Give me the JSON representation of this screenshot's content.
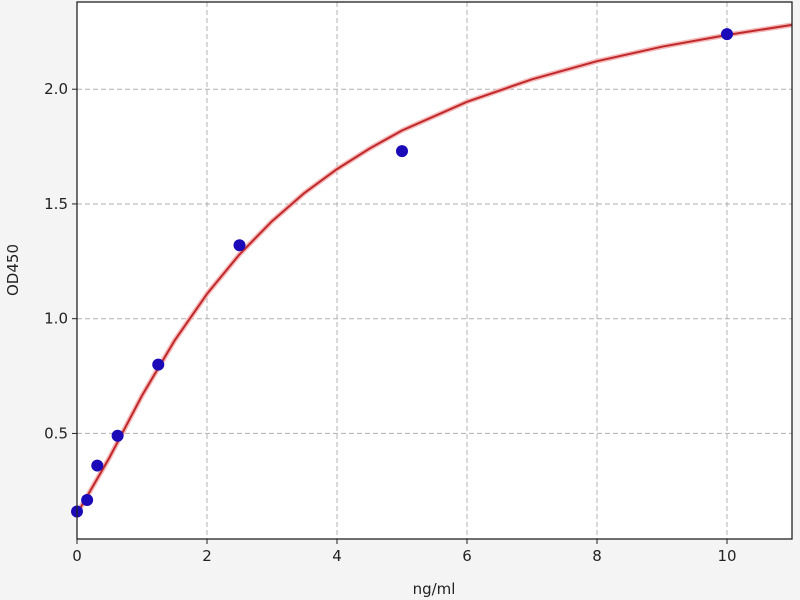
{
  "chart_data": {
    "type": "scatter",
    "title": "",
    "xlabel": "ng/ml",
    "ylabel": "OD450",
    "xlim": [
      0,
      11
    ],
    "ylim": [
      0.04,
      2.38
    ],
    "xticks": [
      0,
      2,
      4,
      6,
      8,
      10
    ],
    "xtick_labels": [
      "0",
      "2",
      "4",
      "6",
      "8",
      "10"
    ],
    "yticks": [
      0.5,
      1.0,
      1.5,
      2.0
    ],
    "ytick_labels": [
      "0.5",
      "1.0",
      "1.5",
      "2.0"
    ],
    "grid": true,
    "grid_style": "dashed",
    "points": {
      "x": [
        0,
        0.156,
        0.312,
        0.625,
        1.25,
        2.5,
        5,
        10
      ],
      "y": [
        0.16,
        0.21,
        0.36,
        0.49,
        0.8,
        1.32,
        1.73,
        2.24
      ],
      "color": "#1a0ab8"
    },
    "fit_curve": {
      "x": [
        0,
        0.5,
        1,
        1.5,
        2,
        2.5,
        3,
        3.5,
        4,
        4.5,
        5,
        6,
        7,
        8,
        9,
        10,
        11
      ],
      "y": [
        0.15,
        0.395,
        0.665,
        0.904,
        1.108,
        1.28,
        1.425,
        1.548,
        1.652,
        1.741,
        1.82,
        1.945,
        2.043,
        2.122,
        2.185,
        2.236,
        2.28
      ],
      "color": "#c0282a"
    }
  }
}
